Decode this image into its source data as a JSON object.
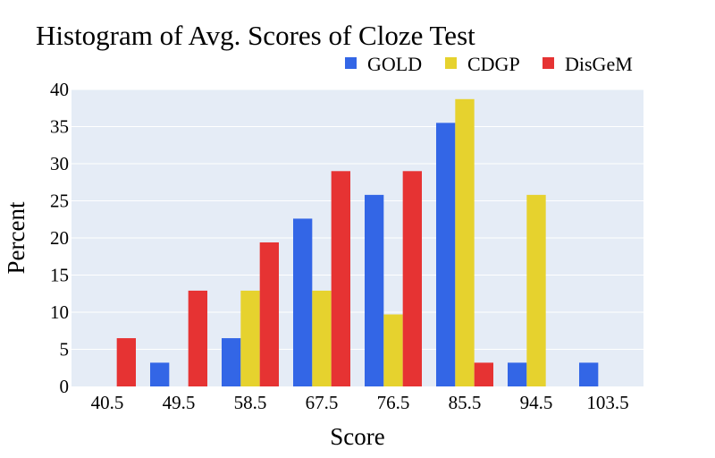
{
  "chart_data": {
    "type": "bar",
    "title": "Histogram of Avg. Scores of Cloze Test",
    "xlabel": "Score",
    "ylabel": "Percent",
    "categories": [
      "40.5",
      "49.5",
      "58.5",
      "67.5",
      "76.5",
      "85.5",
      "94.5",
      "103.5"
    ],
    "ylim": [
      0,
      40
    ],
    "yticks": [
      "0",
      "5",
      "10",
      "15",
      "20",
      "25",
      "30",
      "35",
      "40"
    ],
    "grid": true,
    "legend_position": "top-right",
    "series": [
      {
        "name": "GOLD",
        "color": "#3366e6",
        "values": [
          0,
          3.2,
          6.5,
          22.6,
          25.8,
          35.5,
          3.2,
          3.2
        ]
      },
      {
        "name": "CDGP",
        "color": "#e6d22e",
        "values": [
          0,
          0,
          12.9,
          12.9,
          9.7,
          38.7,
          25.8,
          0
        ]
      },
      {
        "name": "DisGeM",
        "color": "#e63333",
        "values": [
          6.5,
          12.9,
          19.4,
          29.0,
          29.0,
          3.2,
          0,
          0
        ]
      }
    ],
    "plot_background": "#e5ecf6"
  }
}
